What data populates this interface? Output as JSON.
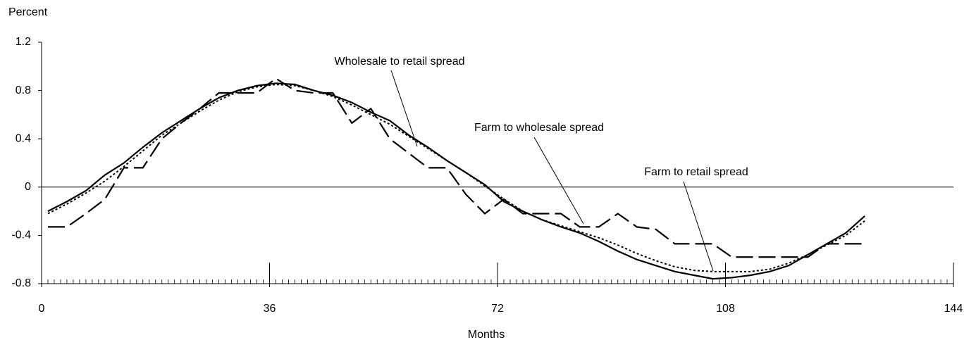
{
  "chart_data": {
    "type": "line",
    "y_label": "Percent",
    "x_label": "Months",
    "annotations": [
      "Wholesale to retail spread",
      "Farm to wholesale spread",
      "Farm to retail spread"
    ],
    "x": [
      1,
      4,
      7,
      10,
      13,
      16,
      19,
      22,
      25,
      28,
      31,
      34,
      37,
      40,
      43,
      46,
      49,
      52,
      55,
      58,
      61,
      64,
      67,
      70,
      73,
      76,
      79,
      82,
      85,
      88,
      91,
      94,
      97,
      100,
      103,
      106,
      109,
      112,
      115,
      118,
      121,
      124,
      127,
      130
    ],
    "series": [
      {
        "name": "Wholesale to retail spread",
        "color": "#000000",
        "dash": "solid",
        "values": [
          -0.2,
          -0.12,
          -0.03,
          0.1,
          0.2,
          0.33,
          0.45,
          0.55,
          0.65,
          0.74,
          0.8,
          0.84,
          0.86,
          0.85,
          0.8,
          0.76,
          0.7,
          0.62,
          0.55,
          0.43,
          0.33,
          0.22,
          0.12,
          0.02,
          -0.12,
          -0.2,
          -0.27,
          -0.33,
          -0.38,
          -0.45,
          -0.53,
          -0.6,
          -0.65,
          -0.7,
          -0.73,
          -0.76,
          -0.75,
          -0.73,
          -0.7,
          -0.65,
          -0.56,
          -0.47,
          -0.38,
          -0.24
        ]
      },
      {
        "name": "Farm to wholesale spread",
        "color": "#000000",
        "dash": "long",
        "values": [
          -0.33,
          -0.33,
          -0.22,
          -0.1,
          0.16,
          0.16,
          0.4,
          0.53,
          0.65,
          0.78,
          0.78,
          0.78,
          0.9,
          0.8,
          0.78,
          0.78,
          0.53,
          0.65,
          0.4,
          0.28,
          0.16,
          0.16,
          -0.06,
          -0.22,
          -0.1,
          -0.22,
          -0.22,
          -0.22,
          -0.33,
          -0.33,
          -0.22,
          -0.33,
          -0.35,
          -0.47,
          -0.47,
          -0.47,
          -0.58,
          -0.58,
          -0.58,
          -0.58,
          -0.58,
          -0.47,
          -0.47,
          -0.47
        ]
      },
      {
        "name": "Farm to retail spread",
        "color": "#000000",
        "dash": "dotted",
        "values": [
          -0.22,
          -0.14,
          -0.05,
          0.05,
          0.17,
          0.3,
          0.43,
          0.53,
          0.63,
          0.72,
          0.79,
          0.83,
          0.85,
          0.84,
          0.8,
          0.75,
          0.68,
          0.6,
          0.52,
          0.42,
          0.32,
          0.22,
          0.12,
          0.01,
          -0.1,
          -0.2,
          -0.27,
          -0.32,
          -0.37,
          -0.42,
          -0.48,
          -0.55,
          -0.61,
          -0.66,
          -0.69,
          -0.7,
          -0.7,
          -0.7,
          -0.68,
          -0.63,
          -0.56,
          -0.48,
          -0.4,
          -0.28
        ]
      }
    ],
    "xlim": [
      0,
      144
    ],
    "xticks": [
      0,
      36,
      72,
      108,
      144
    ],
    "ylim": [
      -0.8,
      1.2
    ],
    "yticks": [
      1.2,
      0.8,
      0.4,
      0,
      -0.4,
      -0.8
    ]
  }
}
